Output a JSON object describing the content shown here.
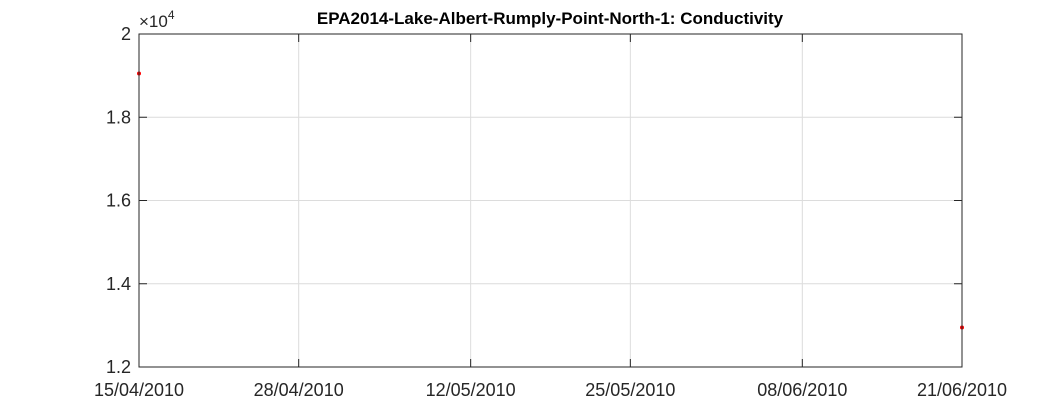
{
  "chart_data": {
    "type": "scatter",
    "title": "EPA2014-Lake-Albert-Rumply-Point-North-1: Conductivity",
    "xlabel": "",
    "ylabel": "",
    "y_exponent_label": {
      "base": "×10",
      "exponent": "4"
    },
    "x_ticks": [
      "15/04/2010",
      "28/04/2010",
      "12/05/2010",
      "25/05/2010",
      "08/06/2010",
      "21/06/2010"
    ],
    "y_ticks": [
      "1.2",
      "1.4",
      "1.6",
      "1.8",
      "2"
    ],
    "xlim": [
      "2010-04-15",
      "2010-06-21"
    ],
    "ylim": [
      12000,
      20000
    ],
    "grid": true,
    "series": [
      {
        "marker_color": "#ff0000",
        "points": [
          {
            "x": "2010-04-15",
            "y": 19050
          },
          {
            "x": "2010-06-21",
            "y": 12950
          }
        ]
      }
    ]
  }
}
